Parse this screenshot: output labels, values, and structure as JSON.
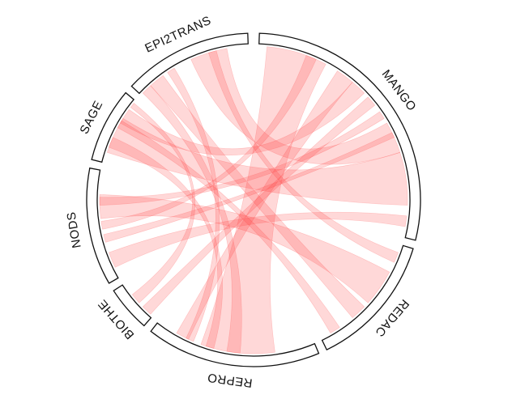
{
  "chart_data": {
    "type": "chord",
    "sectors": [
      "MANGO",
      "REDAC",
      "REPRO",
      "BIOTHE",
      "NODS",
      "SAGE",
      "EPI2TRANS"
    ]
  }
}
